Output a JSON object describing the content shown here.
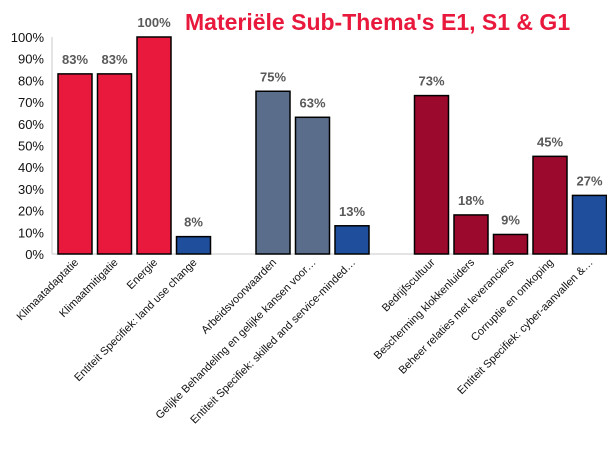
{
  "chart_data": {
    "type": "bar",
    "title": "Materiële Sub-Thema's E1, S1 & G1",
    "ylim": [
      0,
      100
    ],
    "ytick_labels": [
      "0%",
      "10%",
      "20%",
      "30%",
      "40%",
      "50%",
      "60%",
      "70%",
      "80%",
      "90%",
      "100%"
    ],
    "grid": false,
    "legend": "none",
    "groups": [
      {
        "bars": [
          {
            "category": "Klimaatadaptatie",
            "value": 83,
            "label": "83%",
            "color": "#e8193c"
          },
          {
            "category": "Klimaatmitigatie",
            "value": 83,
            "label": "83%",
            "color": "#e8193c"
          },
          {
            "category": "Energie",
            "value": 100,
            "label": "100%",
            "color": "#e8193c"
          },
          {
            "category": "Entiteit Specifiek: land use change",
            "value": 8,
            "label": "8%",
            "color": "#1f4e9c"
          }
        ]
      },
      {
        "bars": [
          {
            "category": "Arbeidsvoorwaarden",
            "value": 75,
            "label": "75%",
            "color": "#5a6e8c"
          },
          {
            "category": "Gelijke Behandeling en gelijke kansen voor…",
            "value": 63,
            "label": "63%",
            "color": "#5a6e8c"
          },
          {
            "category": "Entiteit Specifiek: skilled and service-minded…",
            "value": 13,
            "label": "13%",
            "color": "#1f4e9c"
          }
        ]
      },
      {
        "bars": [
          {
            "category": "Bedrijfscultuur",
            "value": 73,
            "label": "73%",
            "color": "#9b0a2d"
          },
          {
            "category": "Bescherming klokkenluiders",
            "value": 18,
            "label": "18%",
            "color": "#9b0a2d"
          },
          {
            "category": "Beheer relaties met leveranciers",
            "value": 9,
            "label": "9%",
            "color": "#9b0a2d"
          },
          {
            "category": "Corruptie en omkoping",
            "value": 45,
            "label": "45%",
            "color": "#9b0a2d"
          },
          {
            "category": "Entiteit Specifiek: cyber-aanvallen &…",
            "value": 27,
            "label": "27%",
            "color": "#1f4e9c"
          }
        ]
      }
    ]
  }
}
